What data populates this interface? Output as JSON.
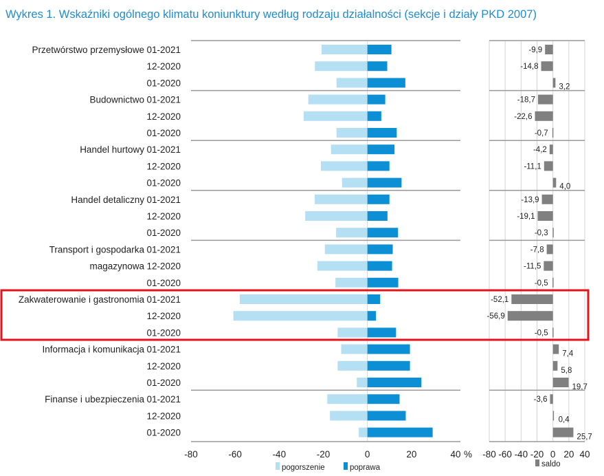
{
  "title": "Wykres 1. Wskaźniki ogólnego klimatu koniunktury według rodzaju działalności (sekcje i działy PKD 2007)",
  "colors": {
    "pogorszenie": "#b5dff3",
    "poprawa": "#0c8fd5",
    "saldo": "#808080",
    "title": "#1f8dcd",
    "highlight": "#e3151c"
  },
  "chart_data": [
    {
      "type": "bar",
      "orientation": "horizontal",
      "stacked_diverging": true,
      "xlim": [
        -80,
        40
      ],
      "xticks": [
        "-80",
        "-60",
        "-40",
        "-20",
        "0",
        "20",
        "40"
      ],
      "unit_label": "%",
      "legend": [
        "pogorszenie",
        "poprawa"
      ],
      "legend_position": "bottom",
      "highlighted_group": "Zakwaterowanie i gastronomia",
      "groups": [
        {
          "name": [
            "Przetwórstwo przemysłowe"
          ],
          "periods": [
            "01-2021",
            "12-2020",
            "01-2020"
          ],
          "pogorszenie": [
            -20.8,
            -23.8,
            -14.0
          ],
          "poprawa": [
            10.9,
            9.0,
            17.2
          ]
        },
        {
          "name": [
            "Budownictwo"
          ],
          "periods": [
            "01-2021",
            "12-2020",
            "01-2020"
          ],
          "pogorszenie": [
            -26.8,
            -28.9,
            -14.0
          ],
          "poprawa": [
            8.1,
            6.3,
            13.3
          ]
        },
        {
          "name": [
            "Handel hurtowy"
          ],
          "periods": [
            "01-2021",
            "12-2020",
            "01-2020"
          ],
          "pogorszenie": [
            -16.5,
            -21.1,
            -11.5
          ],
          "poprawa": [
            12.3,
            10.0,
            15.5
          ]
        },
        {
          "name": [
            "Handel detaliczny"
          ],
          "periods": [
            "01-2021",
            "12-2020",
            "01-2020"
          ],
          "pogorszenie": [
            -23.9,
            -28.2,
            -14.2
          ],
          "poprawa": [
            10.0,
            9.1,
            13.9
          ]
        },
        {
          "name": [
            "Transport i gospodarka",
            "magazynowa"
          ],
          "periods": [
            "01-2021",
            "12-2020",
            "01-2020"
          ],
          "pogorszenie": [
            -19.3,
            -22.7,
            -14.5
          ],
          "poprawa": [
            11.5,
            11.2,
            14.0
          ]
        },
        {
          "name": [
            "Zakwaterowanie i gastronomia"
          ],
          "periods": [
            "01-2021",
            "12-2020",
            "01-2020"
          ],
          "pogorszenie": [
            -57.9,
            -60.8,
            -13.5
          ],
          "poprawa": [
            5.8,
            3.9,
            13.0
          ]
        },
        {
          "name": [
            "Informacja i komunikacja"
          ],
          "periods": [
            "01-2021",
            "12-2020",
            "01-2020"
          ],
          "pogorszenie": [
            -11.9,
            -13.5,
            -4.8
          ],
          "poprawa": [
            19.3,
            19.3,
            24.5
          ]
        },
        {
          "name": [
            "Finanse i ubezpieczenia"
          ],
          "periods": [
            "01-2021",
            "12-2020",
            "01-2020"
          ],
          "pogorszenie": [
            -18.2,
            -17.0,
            -3.9
          ],
          "poprawa": [
            14.6,
            17.4,
            29.6
          ]
        }
      ]
    },
    {
      "type": "bar",
      "orientation": "horizontal",
      "xlim": [
        -80,
        40
      ],
      "xticks": [
        "-80",
        "-60",
        "-40",
        "-20",
        "0",
        "20",
        "40"
      ],
      "grid": true,
      "legend": [
        "saldo"
      ],
      "legend_position": "bottom",
      "values": [
        -9.9,
        -14.8,
        3.2,
        -18.7,
        -22.6,
        -0.7,
        -4.2,
        -11.1,
        4.0,
        -13.9,
        -19.1,
        -0.3,
        -7.8,
        -11.5,
        -0.5,
        -52.1,
        -56.9,
        -0.5,
        7.4,
        5.8,
        19.7,
        -3.6,
        0.4,
        25.7
      ],
      "labels": [
        "-9,9",
        "-14,8",
        "3,2",
        "-18,7",
        "-22,6",
        "-0,7",
        "-4,2",
        "-11,1",
        "4,0",
        "-13,9",
        "-19,1",
        "-0,3",
        "-7,8",
        "-11,5",
        "-0,5",
        "-52,1",
        "-56,9",
        "-0,5",
        "7,4",
        "5,8",
        "19,7",
        "-3,6",
        "0,4",
        "25,7"
      ]
    }
  ]
}
